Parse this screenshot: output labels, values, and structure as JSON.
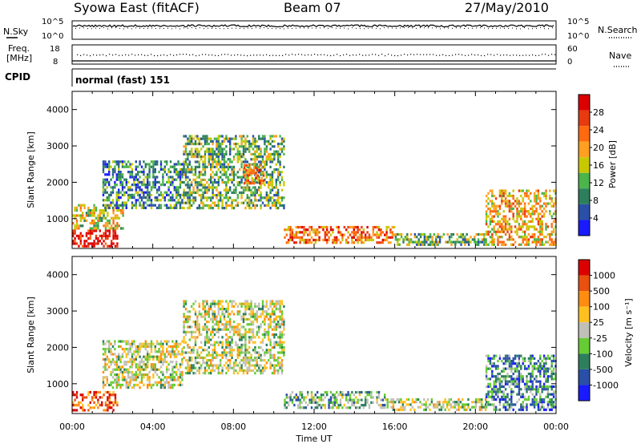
{
  "header": {
    "station": "Syowa East (fitACF)",
    "beam": "Beam 07",
    "date": "27/May/2010"
  },
  "top_panels": {
    "nsky_label": "N.Sky",
    "nsky_ticks": [
      "10^5",
      "10^0"
    ],
    "nsearch_label": "N.Search",
    "nsearch_ticks": [
      "10^5",
      "10^0"
    ],
    "freq_label": "Freq.",
    "freq_unit": "[MHz]",
    "freq_ticks": [
      "18",
      "8"
    ],
    "nave_label": "Nave",
    "nave_ticks": [
      "60",
      "0"
    ],
    "cpid_label": "CPID",
    "cpid_value": "normal (fast) 151"
  },
  "colors": {
    "power_scale": [
      "#1a1aff",
      "#2a4fa8",
      "#2d7f5c",
      "#4bb44b",
      "#c8c800",
      "#ffa020",
      "#ff6a10",
      "#e83a10",
      "#dd0000"
    ],
    "velocity_scale": [
      "#1a1aff",
      "#2a4fa8",
      "#2d7f5c",
      "#66cc33",
      "#c0c0b8",
      "#ffc020",
      "#ff8c10",
      "#e85010",
      "#dd0000"
    ]
  },
  "chart_data": [
    {
      "type": "heatmap",
      "name": "power-panel",
      "xlabel": "",
      "ylabel": "Slant Range [km]",
      "x_ticks": [
        "00:00",
        "04:00",
        "08:00",
        "12:00",
        "16:00",
        "20:00",
        "00:00"
      ],
      "y_ticks": [
        "1000",
        "2000",
        "3000",
        "4000"
      ],
      "xlim_hours": [
        0,
        24
      ],
      "ylim_km": [
        180,
        4500
      ],
      "colorbar_label": "Power [dB]",
      "colorbar_ticks": [
        "28",
        "24",
        "20",
        "16",
        "12",
        "8",
        "4"
      ],
      "colorbar_range": [
        0,
        30
      ],
      "echo_regions": [
        {
          "t": [
            0.0,
            2.2
          ],
          "r": [
            250,
            700
          ],
          "level": 8
        },
        {
          "t": [
            0.0,
            2.5
          ],
          "r": [
            700,
            1400
          ],
          "level": 4
        },
        {
          "t": [
            1.5,
            5.5
          ],
          "r": [
            1300,
            2600
          ],
          "level": 2
        },
        {
          "t": [
            5.5,
            10.5
          ],
          "r": [
            1300,
            3300
          ],
          "level": 3
        },
        {
          "t": [
            8.5,
            9.5
          ],
          "r": [
            2000,
            2500
          ],
          "level": 6
        },
        {
          "t": [
            10.5,
            16.0
          ],
          "r": [
            350,
            800
          ],
          "level": 6
        },
        {
          "t": [
            16.0,
            20.5
          ],
          "r": [
            250,
            600
          ],
          "level": 3
        },
        {
          "t": [
            20.5,
            24.0
          ],
          "r": [
            300,
            1800
          ],
          "level": 5
        }
      ]
    },
    {
      "type": "heatmap",
      "name": "velocity-panel",
      "xlabel": "Time UT",
      "ylabel": "Slant Range [km]",
      "x_ticks": [
        "00:00",
        "04:00",
        "08:00",
        "12:00",
        "16:00",
        "20:00",
        "00:00"
      ],
      "y_ticks": [
        "1000",
        "2000",
        "3000",
        "4000"
      ],
      "xlim_hours": [
        0,
        24
      ],
      "ylim_km": [
        180,
        4500
      ],
      "colorbar_label": "Velocity [m s⁻¹]",
      "colorbar_ticks": [
        "1000",
        "500",
        "100",
        "25",
        "-25",
        "-100",
        "-500",
        "-1000"
      ],
      "echo_regions": [
        {
          "t": [
            0.0,
            2.2
          ],
          "r": [
            250,
            800
          ],
          "level": 7
        },
        {
          "t": [
            1.5,
            5.5
          ],
          "r": [
            900,
            2200
          ],
          "level": 4
        },
        {
          "t": [
            5.5,
            10.5
          ],
          "r": [
            1300,
            3300
          ],
          "level": 4
        },
        {
          "t": [
            10.5,
            15.5
          ],
          "r": [
            350,
            800
          ],
          "level": 3
        },
        {
          "t": [
            15.5,
            20.5
          ],
          "r": [
            250,
            600
          ],
          "level": 4
        },
        {
          "t": [
            20.5,
            24.0
          ],
          "r": [
            300,
            1800
          ],
          "level": 2
        }
      ]
    }
  ]
}
